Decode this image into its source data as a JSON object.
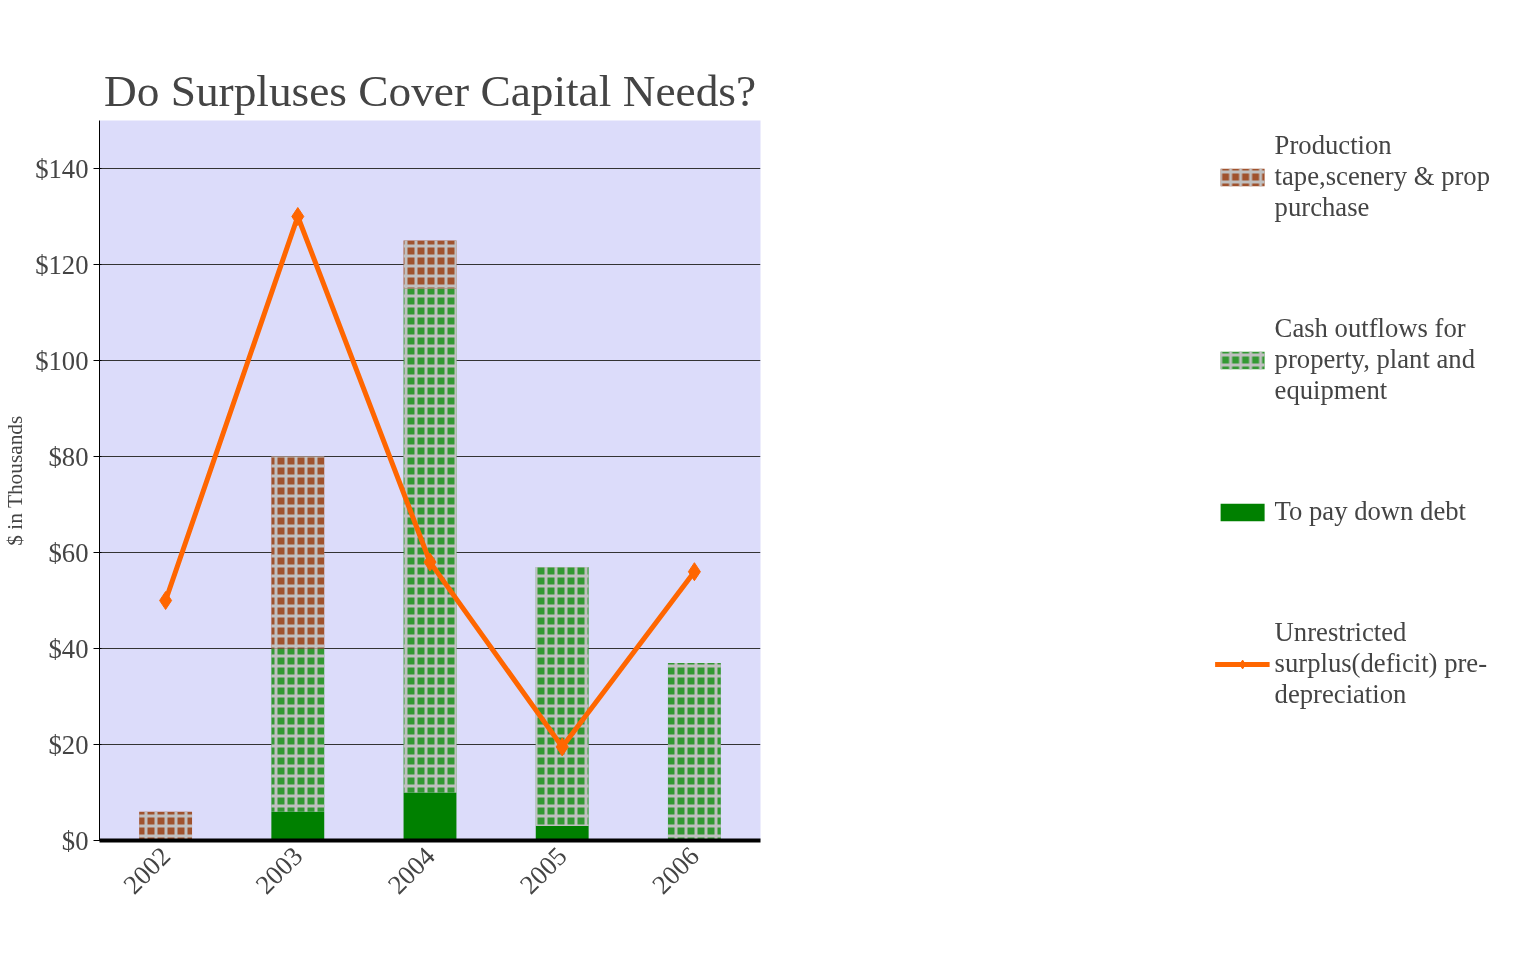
{
  "chart_data": {
    "type": "bar",
    "title": "Do Surpluses Cover Capital Needs?",
    "ylabel": "$ in Thousands",
    "categories": [
      "2002",
      "2003",
      "2004",
      "2005",
      "2006"
    ],
    "stacked": true,
    "series": [
      {
        "name": "To pay down debt",
        "color": "#008000",
        "values": [
          0,
          6,
          10,
          3,
          0
        ]
      },
      {
        "name": "Cash outflows for property, plant and equipment",
        "color": "#339933",
        "values": [
          0,
          34,
          105,
          54,
          37
        ]
      },
      {
        "name": "Production tape,scenery & prop purchase",
        "color": "#a0522d",
        "values": [
          6,
          40,
          10,
          0,
          0
        ]
      },
      {
        "name": "Unrestricted surplus(deficit) pre-depreciation",
        "type": "line",
        "color": "#ff6600",
        "values": [
          50,
          130,
          58,
          19.5,
          56
        ]
      }
    ],
    "ylim": [
      0,
      150
    ],
    "yticks": [
      {
        "value": 0,
        "label": "$0"
      },
      {
        "value": 20,
        "label": "$20"
      },
      {
        "value": 40,
        "label": "$40"
      },
      {
        "value": 60,
        "label": "$60"
      },
      {
        "value": 80,
        "label": "$80"
      },
      {
        "value": 100,
        "label": "$100"
      },
      {
        "value": 120,
        "label": "$120"
      },
      {
        "value": 140,
        "label": "$140"
      }
    ],
    "grid": "y",
    "legend": "right",
    "marker": "diamond"
  }
}
